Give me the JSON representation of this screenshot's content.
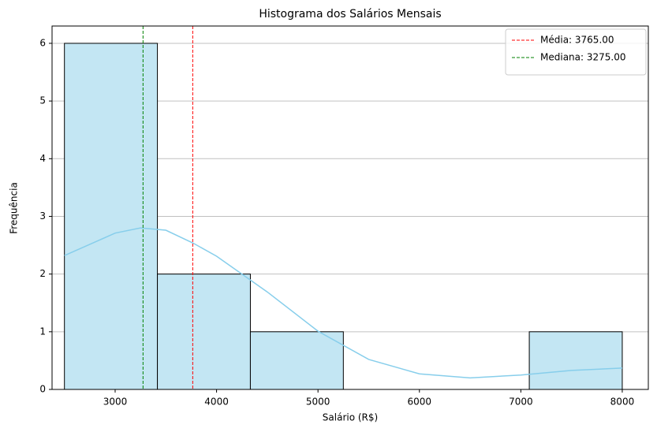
{
  "chart_data": {
    "type": "histogram",
    "title": "Histograma dos Salários Mensais",
    "x_label": "Salário (R$)",
    "y_label": "Frequência",
    "bins": [
      2500,
      3416.67,
      4333.33,
      5250,
      6166.67,
      7083.33,
      8000
    ],
    "counts": [
      6,
      2,
      1,
      0,
      0,
      1
    ],
    "color": "#c3e6f3",
    "edgecolor": "#000000",
    "kde": {
      "color": "#87ceeb",
      "x": [
        2500,
        3000,
        3250,
        3500,
        3765,
        4000,
        4500,
        5000,
        5500,
        6000,
        6500,
        7000,
        7500,
        8000
      ],
      "values": [
        2.32,
        2.71,
        2.8,
        2.76,
        2.54,
        2.31,
        1.69,
        1.01,
        0.52,
        0.27,
        0.2,
        0.25,
        0.33,
        0.37
      ]
    },
    "vlines": [
      {
        "name": "Média: 3765.00",
        "value": 3765,
        "color": "#ff0000"
      },
      {
        "name": "Mediana: 3275.00",
        "value": 3275,
        "color": "#008000"
      }
    ],
    "xlim": [
      2378,
      8257
    ],
    "ylim": [
      0,
      6.3
    ],
    "xticks": [
      3000,
      4000,
      5000,
      6000,
      7000,
      8000
    ],
    "yticks": [
      0,
      1,
      2,
      3,
      4,
      5,
      6
    ],
    "grid": "y",
    "legend": "upper right"
  }
}
